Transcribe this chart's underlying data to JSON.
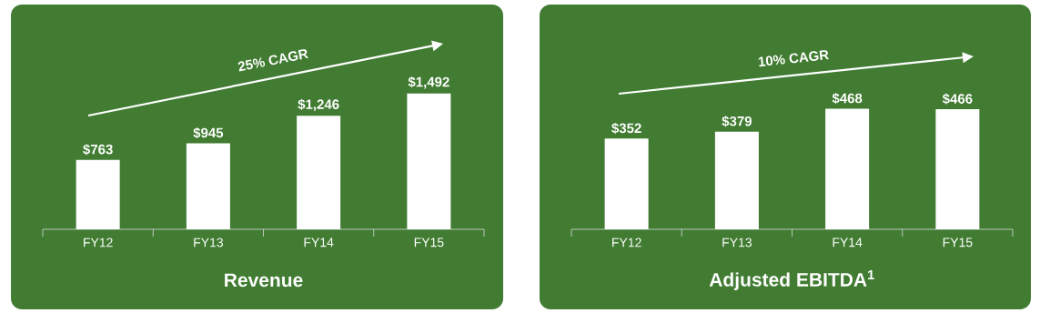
{
  "chart_data": [
    {
      "type": "bar",
      "title": "Revenue",
      "categories": [
        "FY12",
        "FY13",
        "FY14",
        "FY15"
      ],
      "values": [
        763,
        945,
        1246,
        1492
      ],
      "color": "#ffffff",
      "value_labels": [
        "$763",
        "$945",
        "$1,246",
        "$1,492"
      ],
      "annotations": [
        "25% CAGR"
      ]
    },
    {
      "type": "bar",
      "title": "Adjusted EBITDA$^{1}$",
      "categories": [
        "FY12",
        "FY13",
        "FY14",
        "FY15"
      ],
      "values": [
        352,
        379,
        468,
        466
      ],
      "color": "#ffffff",
      "value_labels": [
        "$352",
        "$379",
        "$468",
        "$466"
      ],
      "annotations": [
        "10% CAGR"
      ]
    }
  ]
}
